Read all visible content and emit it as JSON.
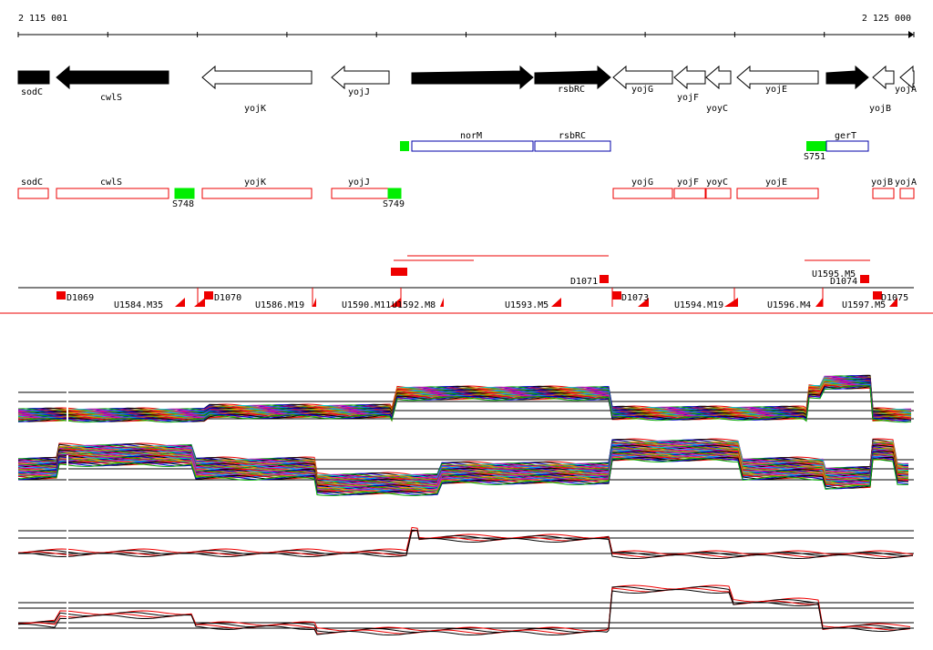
{
  "scale": {
    "start": "2 115 001",
    "end": "2 125 000"
  },
  "genes": [
    "sodC",
    "cwlS",
    "yojK",
    "yojJ",
    "norM",
    "rsbRC",
    "yojG",
    "yojF",
    "yoyC",
    "yojE",
    "gerT",
    "yojB",
    "yojA"
  ],
  "transcripts": [
    "norM",
    "rsbRC",
    "gerT",
    "S751"
  ],
  "annotations": [
    "sodC",
    "cwlS",
    "S748",
    "yojK",
    "yojJ",
    "S749",
    "yojG",
    "yojF",
    "yoyC",
    "yojE",
    "yojB",
    "yojA"
  ],
  "segments": [
    "D1069",
    "U1584.M35",
    "D1070",
    "U1586.M19",
    "U1590.M11",
    "U1592.M8",
    "U1593.M5",
    "D1071",
    "D1073",
    "U1594.M19",
    "U1595.M5",
    "D1074",
    "U1596.M4",
    "U1597.M5",
    "D1075"
  ]
}
